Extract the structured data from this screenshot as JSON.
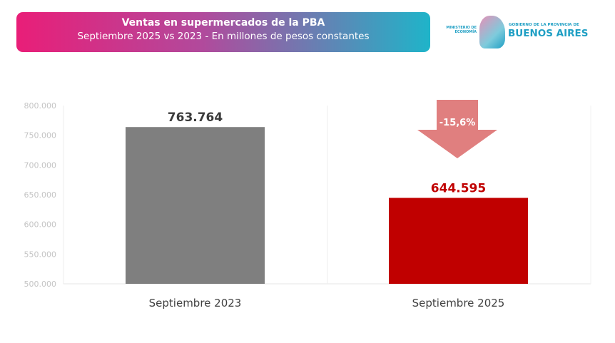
{
  "header": {
    "title": "Ventas en supermercados de la PBA",
    "subtitle": "Septiembre 2025 vs 2023 - En millones de pesos constantes"
  },
  "logo": {
    "ministry": "MINISTERIO DE ECONOMÍA",
    "government": "GOBIERNO DE LA PROVINCIA DE",
    "province": "BUENOS AIRES"
  },
  "chart_data": {
    "type": "bar",
    "title": "Ventas en supermercados de la PBA",
    "categories": [
      "Septiembre 2023",
      "Septiembre 2025"
    ],
    "values": [
      763764,
      644595
    ],
    "value_labels": [
      "763.764",
      "644.595"
    ],
    "colors": [
      "#7f7f7f",
      "#c00000"
    ],
    "label_colors": [
      "#3a3a3a",
      "#c00000"
    ],
    "ylim": [
      500000,
      800000
    ],
    "yticks": [
      500000,
      550000,
      600000,
      650000,
      700000,
      750000,
      800000
    ],
    "ytick_labels": [
      "500.000",
      "550.000",
      "600.000",
      "650.000",
      "700.000",
      "750.000",
      "800.000"
    ],
    "annotation": {
      "text": "-15,6%",
      "color": "#e07f7f"
    },
    "grid": false,
    "xlabel": "",
    "ylabel": ""
  }
}
